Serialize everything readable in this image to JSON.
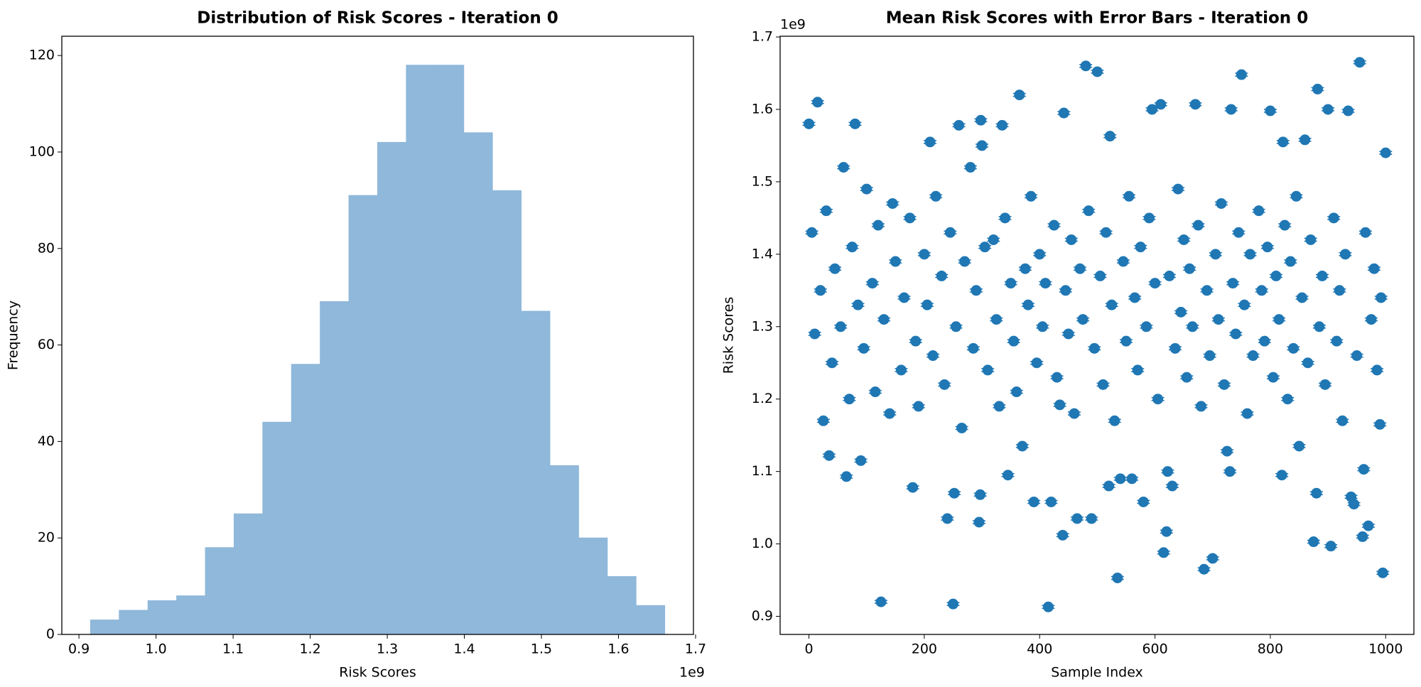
{
  "chart_data": [
    {
      "type": "histogram",
      "title": "Distribution of Risk Scores - Iteration 0",
      "x_label": "Risk Scores",
      "y_label": "Frequency",
      "x_offset": "1e9",
      "bins": [
        0.915,
        0.95225,
        0.9895,
        1.02675,
        1.064,
        1.10125,
        1.1385,
        1.17575,
        1.213,
        1.25025,
        1.2875,
        1.32475,
        1.362,
        1.39925,
        1.4365,
        1.47375,
        1.511,
        1.54825,
        1.5855,
        1.62275,
        1.66
      ],
      "counts": [
        3,
        5,
        7,
        8,
        18,
        25,
        44,
        56,
        69,
        91,
        102,
        118,
        118,
        104,
        92,
        67,
        35,
        20,
        12,
        6
      ],
      "color": "#8fb8da",
      "xlim": [
        0.87775,
        1.69725
      ],
      "ylim": [
        0,
        124
      ],
      "xticks": [
        0.9,
        {
          "value": 1.0,
          "label": "1.0"
        },
        1.1,
        1.2,
        1.3,
        1.4,
        1.5,
        1.6,
        1.7
      ],
      "yticks": [
        0,
        20,
        40,
        60,
        80,
        100,
        120
      ]
    },
    {
      "type": "errorbar",
      "title": "Mean Risk Scores with Error Bars - Iteration 0",
      "x_label": "Sample Index",
      "y_label": "Risk Scores",
      "y_offset": "1e9",
      "color": "#1f77b4",
      "error": 0.002,
      "x": [
        0,
        15,
        125,
        250,
        415,
        480,
        500,
        955,
        995,
        535,
        685,
        700,
        615,
        905,
        875,
        960,
        970,
        440,
        240,
        295,
        465,
        490,
        620,
        390,
        420,
        580,
        180,
        252,
        297,
        65,
        35,
        90,
        520,
        540,
        560,
        630,
        622,
        370,
        345,
        435,
        725,
        730,
        820,
        850,
        880,
        940,
        945,
        962,
        990,
        365,
        442,
        732,
        595,
        610,
        670,
        750,
        800,
        882,
        900,
        935,
        80,
        260,
        298,
        335,
        522,
        1000,
        860,
        822,
        300,
        210,
        5,
        10,
        20,
        25,
        30,
        40,
        45,
        55,
        60,
        70,
        75,
        85,
        95,
        100,
        110,
        115,
        120,
        130,
        140,
        145,
        150,
        160,
        165,
        175,
        185,
        190,
        200,
        205,
        215,
        220,
        230,
        235,
        245,
        255,
        265,
        270,
        280,
        285,
        290,
        305,
        310,
        320,
        325,
        330,
        340,
        350,
        355,
        360,
        375,
        380,
        385,
        395,
        400,
        405,
        410,
        425,
        430,
        445,
        450,
        455,
        460,
        470,
        475,
        485,
        495,
        505,
        510,
        515,
        525,
        530,
        545,
        550,
        555,
        565,
        570,
        575,
        585,
        590,
        600,
        605,
        625,
        635,
        640,
        645,
        650,
        655,
        660,
        665,
        675,
        680,
        690,
        695,
        705,
        710,
        715,
        720,
        735,
        740,
        745,
        755,
        760,
        765,
        770,
        780,
        785,
        790,
        795,
        805,
        810,
        815,
        825,
        830,
        835,
        840,
        845,
        855,
        865,
        870,
        885,
        890,
        895,
        910,
        915,
        920,
        925,
        930,
        950,
        965,
        975,
        980,
        985,
        992
      ],
      "values": [
        1.58,
        1.61,
        0.92,
        0.917,
        0.913,
        1.66,
        1.652,
        1.665,
        0.96,
        0.953,
        0.965,
        0.98,
        0.988,
        0.997,
        1.003,
        1.01,
        1.025,
        1.012,
        1.035,
        1.03,
        1.035,
        1.035,
        1.017,
        1.058,
        1.058,
        1.058,
        1.078,
        1.07,
        1.068,
        1.093,
        1.122,
        1.115,
        1.08,
        1.09,
        1.09,
        1.08,
        1.1,
        1.135,
        1.095,
        1.192,
        1.128,
        1.1,
        1.095,
        1.135,
        1.07,
        1.065,
        1.055,
        1.103,
        1.165,
        1.62,
        1.595,
        1.6,
        1.6,
        1.607,
        1.607,
        1.648,
        1.598,
        1.628,
        1.6,
        1.598,
        1.58,
        1.578,
        1.585,
        1.578,
        1.563,
        1.54,
        1.558,
        1.555,
        1.55,
        1.555,
        1.43,
        1.29,
        1.35,
        1.17,
        1.46,
        1.25,
        1.38,
        1.3,
        1.52,
        1.2,
        1.41,
        1.33,
        1.27,
        1.49,
        1.36,
        1.21,
        1.44,
        1.31,
        1.18,
        1.47,
        1.39,
        1.24,
        1.34,
        1.45,
        1.28,
        1.19,
        1.4,
        1.33,
        1.26,
        1.48,
        1.37,
        1.22,
        1.43,
        1.3,
        1.16,
        1.39,
        1.52,
        1.27,
        1.35,
        1.41,
        1.24,
        1.42,
        1.31,
        1.19,
        1.45,
        1.36,
        1.28,
        1.21,
        1.38,
        1.33,
        1.48,
        1.25,
        1.4,
        1.3,
        1.36,
        1.44,
        1.23,
        1.35,
        1.29,
        1.42,
        1.18,
        1.38,
        1.31,
        1.46,
        1.27,
        1.37,
        1.22,
        1.43,
        1.33,
        1.17,
        1.39,
        1.28,
        1.48,
        1.34,
        1.24,
        1.41,
        1.3,
        1.45,
        1.36,
        1.2,
        1.37,
        1.27,
        1.49,
        1.32,
        1.42,
        1.23,
        1.38,
        1.3,
        1.44,
        1.19,
        1.35,
        1.26,
        1.4,
        1.31,
        1.47,
        1.22,
        1.36,
        1.29,
        1.43,
        1.33,
        1.18,
        1.4,
        1.26,
        1.46,
        1.35,
        1.28,
        1.41,
        1.23,
        1.37,
        1.31,
        1.44,
        1.2,
        1.39,
        1.27,
        1.48,
        1.34,
        1.25,
        1.42,
        1.3,
        1.37,
        1.22,
        1.45,
        1.28,
        1.35,
        1.17,
        1.4,
        1.26,
        1.43,
        1.31,
        1.38,
        1.24,
        1.34
      ],
      "xlim": [
        -49.95,
        1048.95
      ],
      "ylim": [
        0.875,
        1.701
      ],
      "xticks": [
        0,
        200,
        400,
        600,
        800,
        1000
      ],
      "yticks": [
        0.9,
        {
          "value": 1.0,
          "label": "1.0"
        },
        1.1,
        1.2,
        1.3,
        1.4,
        1.5,
        1.6,
        1.7
      ]
    }
  ]
}
